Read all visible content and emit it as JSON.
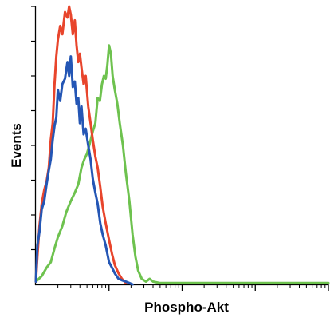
{
  "chart_data": {
    "type": "line",
    "title": "",
    "xlabel": "Phospho-Akt",
    "ylabel": "Events",
    "x_scale": "log",
    "xlim": [
      1,
      10000
    ],
    "ylim": [
      0,
      100
    ],
    "y_ticks": [
      0,
      12.5,
      25,
      37.5,
      50,
      62.5,
      75,
      87.5,
      100
    ],
    "grid": false,
    "legend": "none",
    "series": [
      {
        "color": "#e8452c",
        "x": [
          1,
          1.05,
          1.12,
          1.2,
          1.3,
          1.4,
          1.5,
          1.6,
          1.7,
          1.8,
          1.9,
          2.0,
          2.15,
          2.3,
          2.5,
          2.7,
          2.85,
          3.0,
          3.2,
          3.4,
          3.6,
          3.8,
          4.0,
          4.2,
          4.5,
          4.8,
          5.2,
          5.6,
          6.0,
          6.5,
          7.0,
          7.6,
          8.2,
          9.0,
          10.0,
          11.0,
          12.0,
          13.5,
          15.0,
          17.0
        ],
        "y": [
          1,
          10,
          21,
          29,
          34,
          37,
          42,
          52,
          58,
          72,
          82,
          88,
          93,
          90,
          98,
          96,
          100,
          97,
          90,
          95,
          86,
          80,
          83,
          78,
          72,
          75,
          64,
          58,
          52,
          46,
          42,
          35,
          28,
          22,
          16,
          11,
          7,
          4,
          2,
          0.5
        ]
      },
      {
        "color": "#2456b5",
        "x": [
          1,
          1.05,
          1.12,
          1.2,
          1.3,
          1.4,
          1.5,
          1.6,
          1.7,
          1.8,
          1.9,
          2.0,
          2.15,
          2.3,
          2.5,
          2.7,
          2.85,
          3.0,
          3.2,
          3.4,
          3.6,
          3.8,
          4.0,
          4.2,
          4.5,
          4.8,
          5.2,
          5.6,
          6.0,
          6.5,
          7.0,
          7.6,
          8.2,
          9.0,
          10.0,
          11.0,
          12.0,
          13.5,
          15.0,
          17.0,
          19.0,
          21.0
        ],
        "y": [
          1,
          14,
          19,
          27,
          30,
          36,
          41,
          45,
          52,
          57,
          60,
          70,
          66,
          72,
          74,
          80,
          75,
          82,
          71,
          73,
          65,
          67,
          58,
          64,
          54,
          56,
          50,
          45,
          38,
          33,
          29,
          22,
          18,
          14,
          8,
          6,
          4,
          2,
          1.5,
          1,
          0.5,
          0
        ]
      },
      {
        "color": "#6ec24f",
        "x": [
          1,
          1.2,
          1.4,
          1.6,
          1.8,
          2.0,
          2.3,
          2.6,
          3.0,
          3.4,
          3.8,
          4.2,
          4.6,
          5.0,
          5.5,
          6.0,
          6.5,
          7.0,
          7.5,
          8.0,
          8.5,
          9.0,
          9.5,
          10.0,
          10.6,
          11.2,
          12.0,
          13.0,
          14.0,
          15.5,
          17.0,
          19.0,
          21.0,
          23.0,
          25.0,
          28.0,
          32.0,
          36.0,
          40.0,
          50.0,
          100.0,
          1000.0,
          10000.0
        ],
        "y": [
          1,
          3,
          6,
          8,
          13,
          17,
          21,
          26,
          30,
          33,
          36,
          42,
          45,
          47,
          51,
          55,
          58,
          67,
          66,
          72,
          75,
          74,
          79,
          86,
          83,
          75,
          70,
          65,
          58,
          50,
          40,
          30,
          18,
          10,
          5,
          2,
          1,
          2,
          1,
          0.5,
          0.5,
          0.5,
          0.5
        ]
      }
    ]
  }
}
